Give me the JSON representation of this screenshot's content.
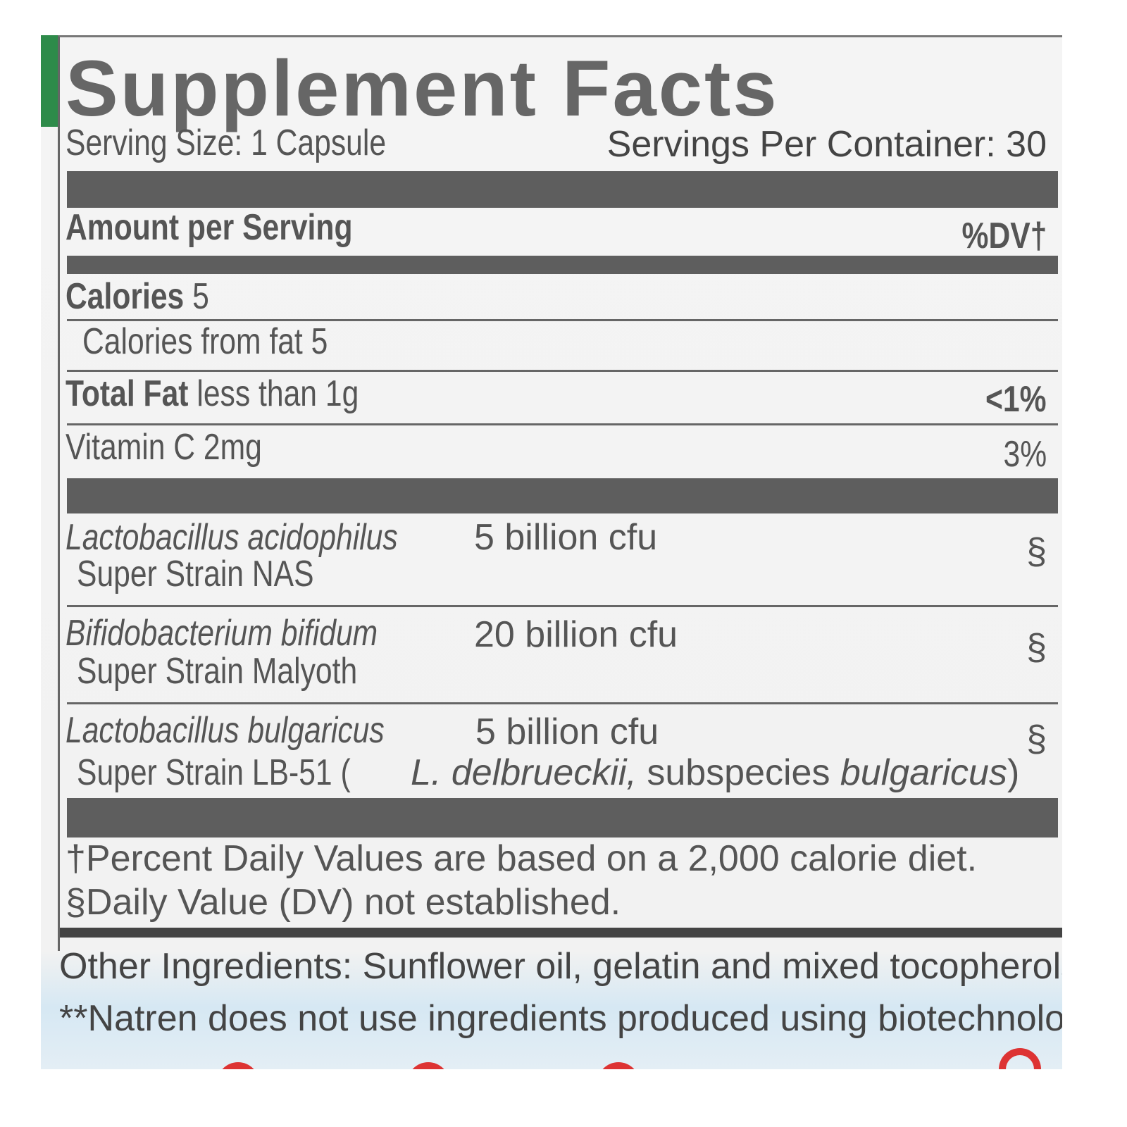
{
  "title": "Supplement Facts",
  "serving_size": "Serving Size: 1 Capsule",
  "servings_per_container": "Servings Per Container: 30",
  "amount_header": "Amount per Serving",
  "dv_header": "%DV†",
  "rows": [
    {
      "label": "Calories",
      "amount": "5",
      "dv": ""
    },
    {
      "label": "Calories from fat 5",
      "amount": "",
      "dv": ""
    },
    {
      "label": "Total Fat",
      "amount": "less than 1g",
      "dv": "<1%"
    },
    {
      "label": "Vitamin C 2mg",
      "amount": "",
      "dv": "3%"
    }
  ],
  "strains": [
    {
      "name": "Lactobacillus acidophilus",
      "strain": "Super Strain NAS",
      "amount": "5 billion cfu",
      "dv": "§"
    },
    {
      "name": "Bifidobacterium bifidum",
      "strain": "Super Strain Malyoth",
      "amount": "20 billion cfu",
      "dv": "§"
    },
    {
      "name": "Lactobacillus bulgaricus",
      "strain": "Super Strain LB-51 (",
      "strain_species": "L. delbrueckii,",
      "strain_mid": " subspecies ",
      "strain_sub": "bulgaricus",
      "strain_end": ")",
      "amount": "5 billion cfu",
      "dv": "§"
    }
  ],
  "footnotes": [
    "†Percent Daily Values are based on a 2,000 calorie diet.",
    "§Daily Value (DV) not established."
  ],
  "other_ingredients": "Other Ingredients: Sunflower oil, gelatin and mixed tocopherols.",
  "biotech_note": "**Natren does not use ingredients produced using biotechnology.",
  "colors": {
    "text": "#555555",
    "bars": "#5e5e5e",
    "accent_green": "#2e8b4a",
    "accent_red": "#dd3333"
  }
}
